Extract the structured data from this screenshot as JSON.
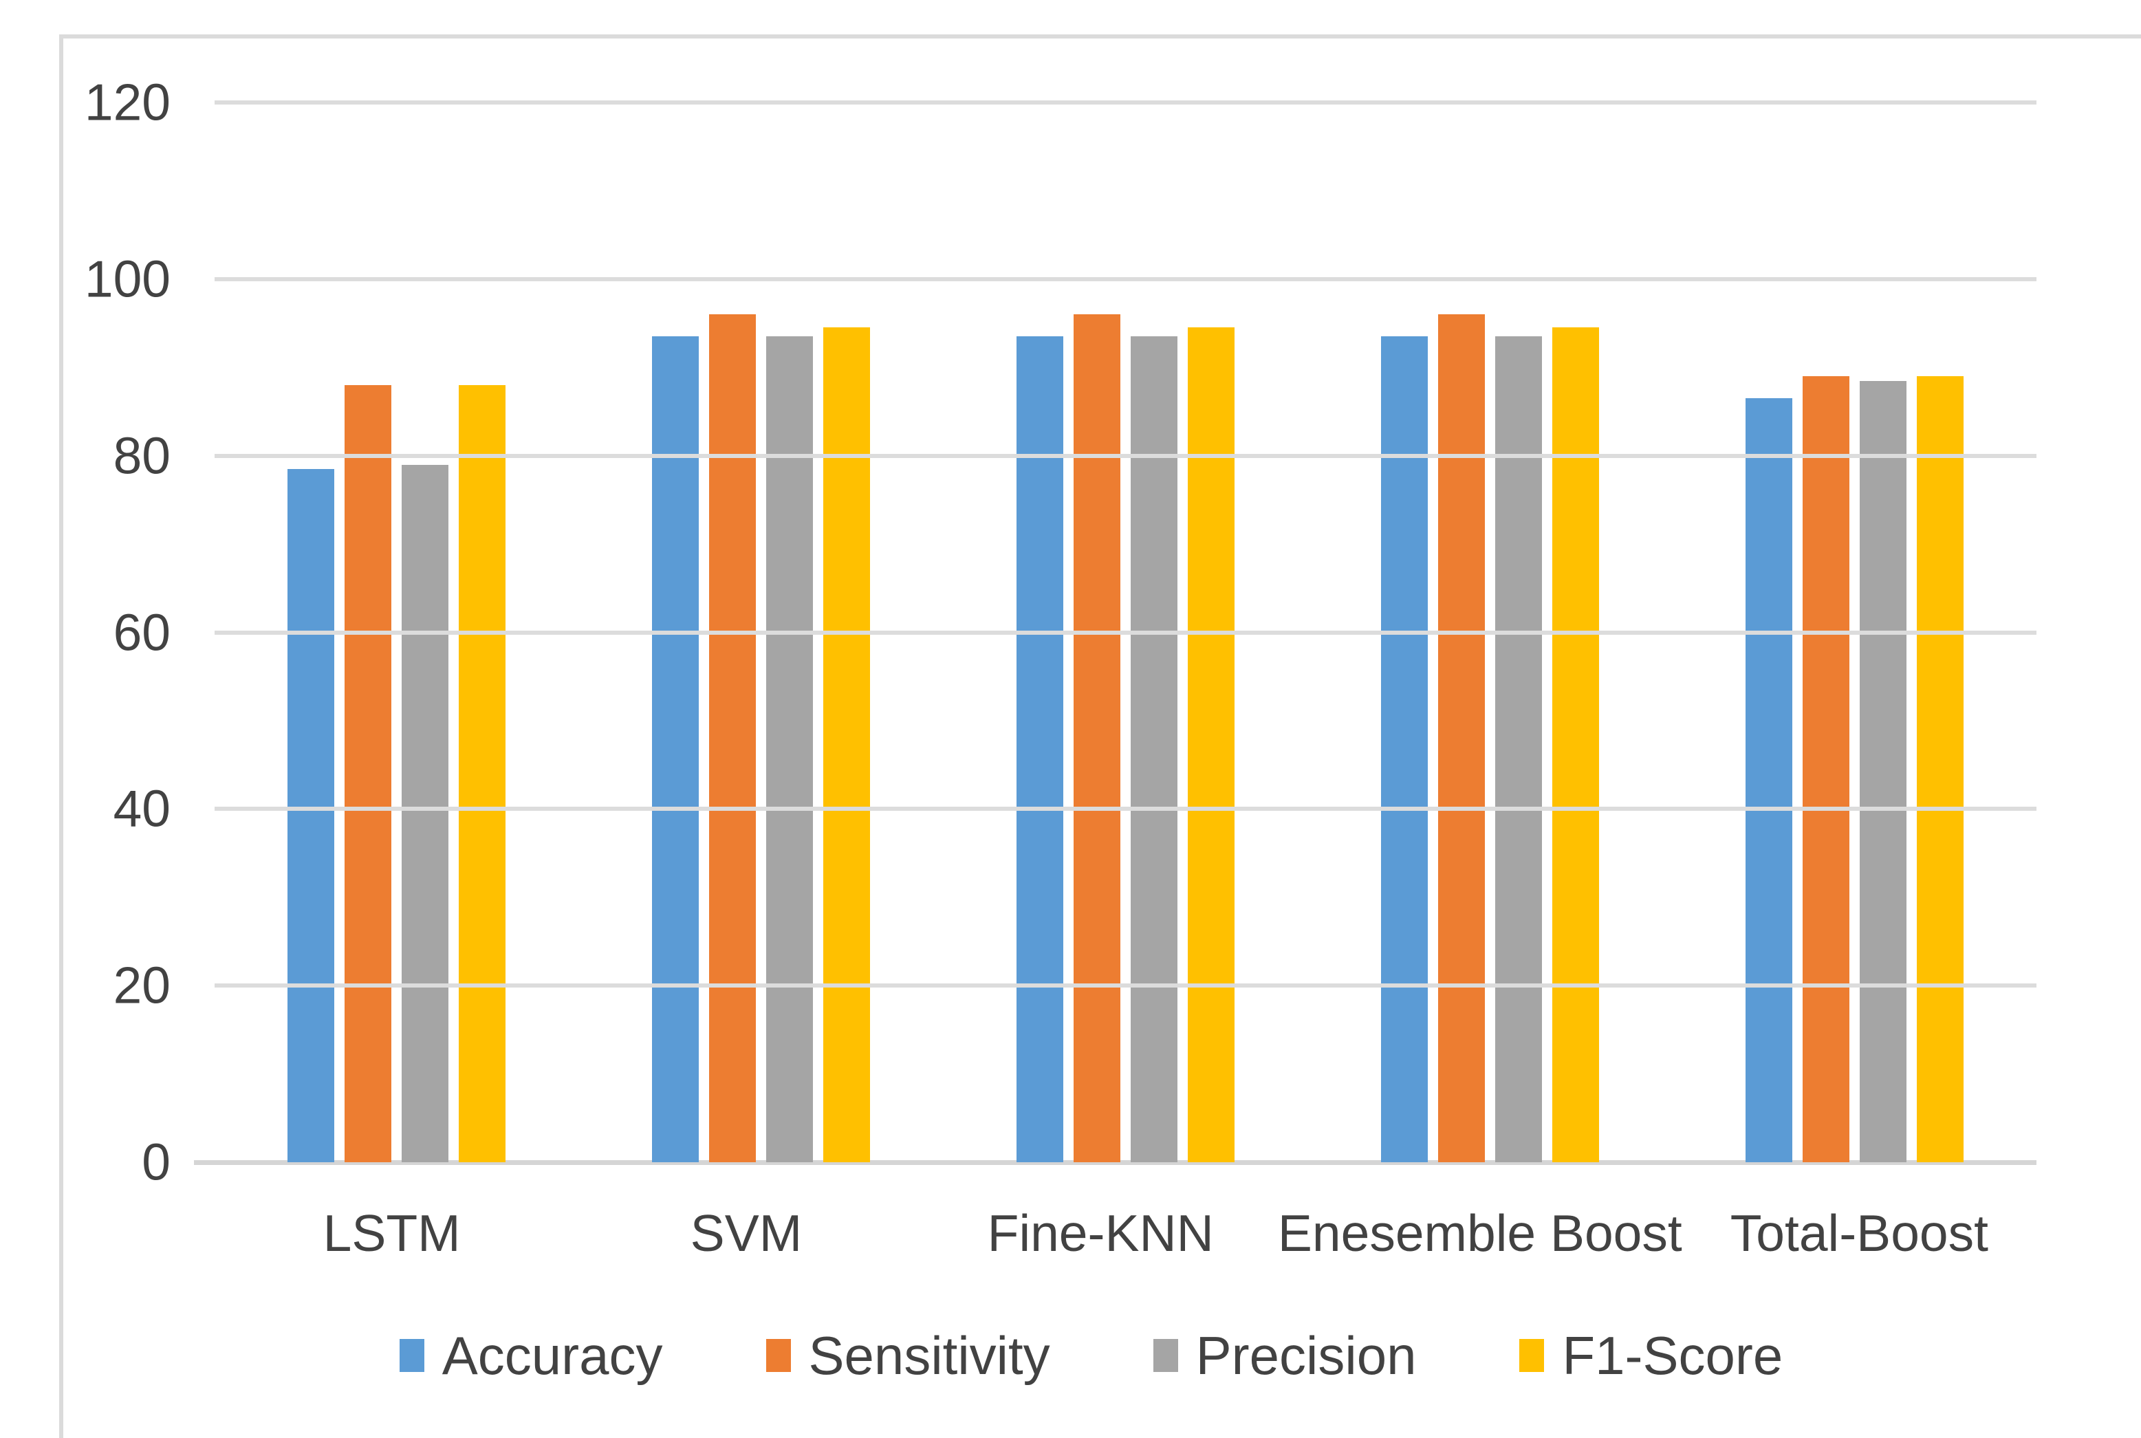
{
  "chart_data": {
    "type": "bar",
    "title": "",
    "xlabel": "",
    "ylabel": "",
    "categories": [
      "LSTM",
      "SVM",
      "Fine-KNN",
      "Enesemble Boost",
      "Total-Boost"
    ],
    "series": [
      {
        "name": "Accuracy",
        "color": "#5B9BD5",
        "values": [
          78.5,
          93.5,
          93.5,
          93.5,
          86.5
        ]
      },
      {
        "name": "Sensitivity",
        "color": "#ED7D31",
        "values": [
          88,
          96,
          96,
          96,
          89
        ]
      },
      {
        "name": "Precision",
        "color": "#A5A5A5",
        "values": [
          79,
          93.5,
          93.5,
          93.5,
          88.5
        ]
      },
      {
        "name": "F1-Score",
        "color": "#FFC000",
        "values": [
          88,
          94.5,
          94.5,
          94.5,
          89
        ]
      }
    ],
    "y_ticks": [
      120,
      100,
      80,
      60,
      40,
      20,
      0
    ],
    "ylim": [
      0,
      120
    ],
    "grid": "horizontal",
    "legend_position": "bottom"
  },
  "style": {
    "background": "#FFFFFF",
    "chart_border_color": "#DBDBDB",
    "gridline_color": "#DCDCDC",
    "axis_line_color": "#D5D5D5",
    "text_color": "#424242"
  }
}
